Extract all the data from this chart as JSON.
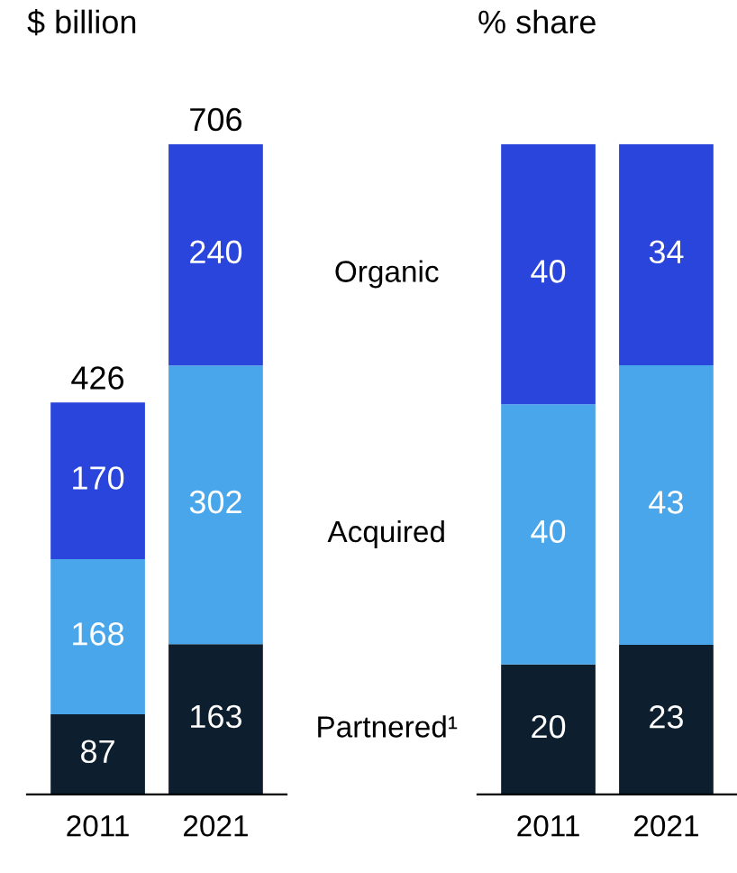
{
  "chart_data": [
    {
      "type": "bar",
      "title": "$ billion",
      "stacked": true,
      "data_labels": true,
      "categories": [
        "2011",
        "2021"
      ],
      "totals": [
        "426",
        "706"
      ],
      "series": [
        {
          "color": "#0d1f2e",
          "values": [
            87,
            163
          ]
        },
        {
          "color": "#4aa6ea",
          "values": [
            168,
            302
          ]
        },
        {
          "color": "#2a45dc",
          "values": [
            170,
            240
          ]
        }
      ]
    },
    {
      "type": "bar",
      "title": "% share",
      "stacked": true,
      "data_labels": true,
      "categories": [
        "2011",
        "2021"
      ],
      "series": [
        {
          "name": "Partnered¹",
          "color": "#0d1f2e",
          "values": [
            20,
            23
          ]
        },
        {
          "name": "Acquired",
          "color": "#4aa6ea",
          "values": [
            40,
            43
          ]
        },
        {
          "name": "Organic",
          "color": "#2a45dc",
          "values": [
            40,
            34
          ]
        }
      ]
    }
  ]
}
